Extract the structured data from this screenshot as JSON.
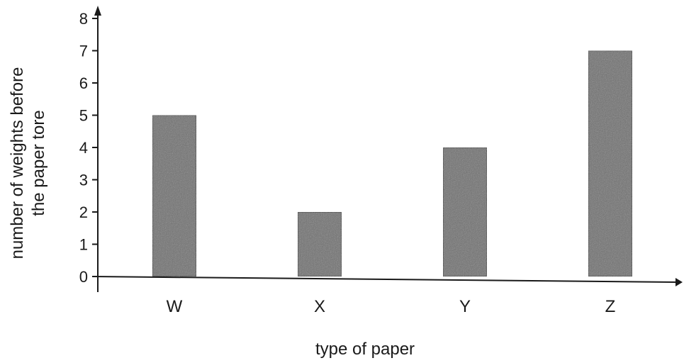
{
  "chart_data": {
    "type": "bar",
    "categories": [
      "W",
      "X",
      "Y",
      "Z"
    ],
    "values": [
      5,
      2,
      4,
      7
    ],
    "xlabel": "type of paper",
    "ylabel_lines": [
      "number of weights before",
      "the paper tore"
    ],
    "ylim": [
      0,
      8
    ],
    "yticks": [
      "0",
      "1",
      "2",
      "3",
      "4",
      "5",
      "6",
      "7",
      "8"
    ],
    "grid": false,
    "bar_color": "#6f6f6f"
  }
}
